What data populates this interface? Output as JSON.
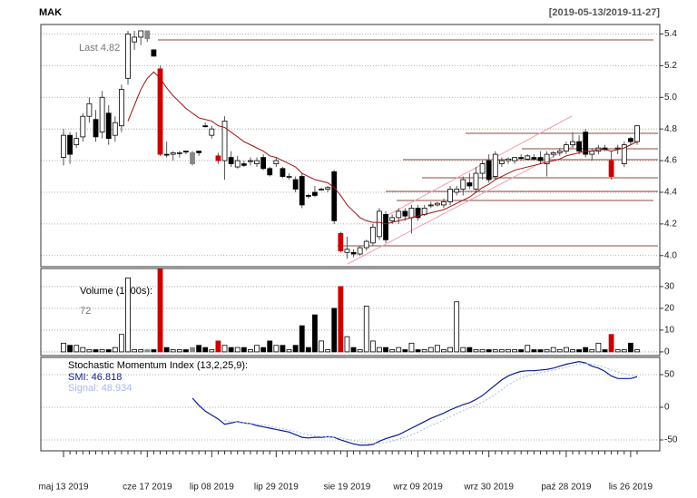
{
  "chart_data": [
    {
      "type": "candlestick",
      "title": "MAK",
      "subtitle": "[2019-05-13/2019-11-27]",
      "annotation": "Last 4.82",
      "categories": [
        "maj 13 2019",
        null,
        null,
        null,
        null,
        null,
        null,
        null,
        null,
        null,
        null,
        null,
        null,
        "cze 17 2019",
        null,
        null,
        null,
        null,
        null,
        null,
        null,
        null,
        null,
        "lip 08 2019",
        null,
        null,
        null,
        null,
        null,
        null,
        null,
        null,
        null,
        "lip 29 2019",
        null,
        null,
        null,
        null,
        null,
        null,
        null,
        null,
        null,
        null,
        "sie 19 2019",
        null,
        null,
        null,
        null,
        null,
        null,
        null,
        null,
        null,
        null,
        "wrz 09 2019",
        null,
        null,
        null,
        null,
        null,
        null,
        null,
        null,
        null,
        null,
        "wrz 30 2019",
        null,
        null,
        null,
        null,
        null,
        null,
        null,
        null,
        null,
        null,
        null,
        "paź 28 2019",
        null,
        null,
        null,
        null,
        null,
        null,
        null,
        null,
        null,
        "lis 26 2019",
        null
      ],
      "open": [
        4.62,
        4.76,
        4.7,
        4.75,
        4.88,
        4.86,
        4.78,
        4.9,
        4.76,
        4.82,
        5.12,
        5.35,
        5.38,
        5.42,
        5.3,
        5.18,
        4.64,
        4.64,
        4.65,
        4.66,
        4.58,
        4.65,
        4.82,
        4.8,
        4.63,
        4.6,
        4.62,
        4.56,
        4.58,
        4.6,
        4.58,
        4.62,
        4.55,
        4.58,
        4.55,
        4.5,
        4.48,
        4.5,
        4.38,
        4.4,
        4.42,
        4.42,
        4.53,
        4.14,
        4.04,
        4.02,
        4.01,
        4.05,
        4.08,
        4.12,
        4.26,
        4.22,
        4.24,
        4.28,
        4.24,
        4.3,
        4.26,
        4.32,
        4.32,
        4.32,
        4.34,
        4.4,
        4.42,
        4.46,
        4.42,
        4.52,
        4.6,
        4.5,
        4.58,
        4.6,
        4.6,
        4.62,
        4.61,
        4.62,
        4.62,
        4.58,
        4.64,
        4.65,
        4.66,
        4.7,
        4.72,
        4.78,
        4.64,
        4.66,
        4.68,
        4.6,
        4.68,
        4.58,
        4.72,
        4.72
      ],
      "high": [
        4.8,
        4.78,
        4.78,
        4.9,
        5.0,
        4.92,
        5.04,
        4.95,
        4.88,
        5.08,
        5.42,
        5.42,
        5.42,
        5.42,
        5.3,
        5.2,
        4.72,
        4.66,
        4.66,
        4.66,
        4.66,
        4.66,
        4.84,
        4.82,
        4.65,
        4.88,
        4.66,
        4.63,
        4.6,
        4.62,
        4.62,
        4.64,
        4.56,
        4.62,
        4.56,
        4.52,
        4.5,
        4.52,
        4.39,
        4.44,
        4.43,
        4.44,
        4.54,
        4.15,
        4.12,
        4.04,
        4.06,
        4.1,
        4.2,
        4.3,
        4.28,
        4.26,
        4.3,
        4.3,
        4.32,
        4.32,
        4.32,
        4.34,
        4.34,
        4.36,
        4.44,
        4.44,
        4.5,
        4.52,
        4.56,
        4.6,
        4.64,
        4.66,
        4.62,
        4.62,
        4.62,
        4.64,
        4.64,
        4.64,
        4.66,
        4.66,
        4.66,
        4.68,
        4.72,
        4.78,
        4.76,
        4.8,
        4.68,
        4.7,
        4.7,
        4.66,
        4.7,
        4.72,
        4.75,
        4.82
      ],
      "low": [
        4.57,
        4.58,
        4.68,
        4.72,
        4.84,
        4.72,
        4.74,
        4.7,
        4.72,
        4.78,
        5.08,
        5.3,
        5.33,
        5.35,
        5.26,
        4.63,
        4.62,
        4.6,
        4.62,
        4.64,
        4.57,
        4.63,
        4.81,
        4.74,
        4.58,
        4.48,
        4.56,
        4.55,
        4.56,
        4.57,
        4.56,
        4.54,
        4.5,
        4.56,
        4.49,
        4.48,
        4.4,
        4.3,
        4.36,
        4.37,
        4.41,
        4.4,
        4.2,
        4.02,
        3.98,
        3.99,
        4.0,
        4.03,
        4.06,
        4.1,
        4.08,
        4.2,
        4.2,
        4.22,
        4.14,
        4.22,
        4.25,
        4.3,
        4.31,
        4.3,
        4.32,
        4.38,
        4.38,
        4.42,
        4.4,
        4.48,
        4.46,
        4.48,
        4.56,
        4.58,
        4.58,
        4.6,
        4.6,
        4.6,
        4.58,
        4.5,
        4.62,
        4.63,
        4.64,
        4.68,
        4.64,
        4.62,
        4.6,
        4.64,
        4.66,
        4.48,
        4.64,
        4.56,
        4.7,
        4.7
      ],
      "close": [
        4.76,
        4.64,
        4.74,
        4.88,
        4.96,
        4.75,
        5.0,
        4.74,
        4.84,
        5.05,
        5.4,
        5.38,
        5.42,
        5.37,
        5.26,
        4.64,
        4.64,
        4.65,
        4.65,
        4.66,
        4.65,
        4.66,
        4.82,
        4.76,
        4.6,
        4.85,
        4.58,
        4.6,
        4.57,
        4.6,
        4.6,
        4.55,
        4.51,
        4.6,
        4.5,
        4.5,
        4.42,
        4.32,
        4.38,
        4.38,
        4.42,
        4.43,
        4.22,
        4.03,
        4.02,
        4.01,
        4.05,
        4.09,
        4.18,
        4.28,
        4.1,
        4.24,
        4.28,
        4.25,
        4.3,
        4.24,
        4.3,
        4.32,
        4.33,
        4.34,
        4.42,
        4.42,
        4.48,
        4.44,
        4.52,
        4.58,
        4.48,
        4.64,
        4.6,
        4.61,
        4.62,
        4.62,
        4.63,
        4.61,
        4.6,
        4.64,
        4.65,
        4.66,
        4.7,
        4.72,
        4.66,
        4.64,
        4.66,
        4.68,
        4.67,
        4.5,
        4.68,
        4.7,
        4.74,
        4.82
      ],
      "colors": [
        "#ffffff",
        "#000000",
        "#ffffff",
        "#ffffff",
        "#ffffff",
        "#000000",
        "#ffffff",
        "#000000",
        "#ffffff",
        "#ffffff",
        "#ffffff",
        "#ffffff",
        "#ffffff",
        "#888888",
        "#000000",
        "#cc0000",
        "#000000",
        "#ffffff",
        "#ffffff",
        "#000000",
        "#888888",
        "#000000",
        "#000000",
        "#ffffff",
        "#cc0000",
        "#ffffff",
        "#000000",
        "#ffffff",
        "#000000",
        "#ffffff",
        "#ffffff",
        "#000000",
        "#000000",
        "#ffffff",
        "#000000",
        "#ffffff",
        "#000000",
        "#000000",
        "#000000",
        "#000000",
        "#ffffff",
        "#ffffff",
        "#000000",
        "#cc0000",
        "#ffffff",
        "#000000",
        "#ffffff",
        "#ffffff",
        "#ffffff",
        "#ffffff",
        "#000000",
        "#ffffff",
        "#ffffff",
        "#000000",
        "#ffffff",
        "#000000",
        "#ffffff",
        "#ffffff",
        "#ffffff",
        "#ffffff",
        "#ffffff",
        "#ffffff",
        "#ffffff",
        "#000000",
        "#ffffff",
        "#ffffff",
        "#000000",
        "#ffffff",
        "#ffffff",
        "#ffffff",
        "#ffffff",
        "#000000",
        "#ffffff",
        "#000000",
        "#000000",
        "#ffffff",
        "#ffffff",
        "#ffffff",
        "#ffffff",
        "#ffffff",
        "#000000",
        "#000000",
        "#ffffff",
        "#ffffff",
        "#000000",
        "#cc0000",
        "#ffffff",
        "#ffffff",
        "#000000",
        "#ffffff"
      ],
      "ma_color": "#a01010",
      "ma_values": [
        null,
        null,
        null,
        null,
        null,
        null,
        null,
        null,
        null,
        null,
        4.85,
        4.95,
        5.05,
        5.12,
        5.16,
        5.12,
        5.06,
        5.01,
        4.97,
        4.93,
        4.9,
        4.87,
        4.86,
        4.85,
        4.82,
        4.81,
        4.78,
        4.75,
        4.72,
        4.7,
        4.68,
        4.66,
        4.63,
        4.62,
        4.6,
        4.58,
        4.56,
        4.52,
        4.5,
        4.48,
        4.47,
        4.46,
        4.43,
        4.38,
        4.32,
        4.28,
        4.24,
        4.22,
        4.21,
        4.21,
        4.2,
        4.21,
        4.22,
        4.23,
        4.24,
        4.25,
        4.26,
        4.27,
        4.28,
        4.29,
        4.31,
        4.33,
        4.35,
        4.37,
        4.4,
        4.43,
        4.45,
        4.48,
        4.5,
        4.52,
        4.54,
        4.55,
        4.56,
        4.57,
        4.58,
        4.59,
        4.6,
        4.61,
        4.63,
        4.64,
        4.65,
        4.66,
        4.66,
        4.67,
        4.67,
        4.66,
        4.67,
        4.68,
        4.7,
        4.72
      ],
      "ylim": [
        3.93,
        5.46
      ],
      "yticks": [
        {
          "value": 4.0,
          "label": "4.0"
        },
        4.2,
        4.4,
        4.6,
        4.8,
        {
          "value": 5.0,
          "label": "5.0"
        },
        5.2,
        5.4
      ],
      "grid": true
    },
    {
      "type": "bar",
      "title": "Volume (1000s):",
      "annotation": "72",
      "values": [
        4,
        3,
        3,
        2,
        1,
        1,
        1,
        1,
        2,
        8,
        34,
        1,
        1,
        1,
        1,
        38,
        2,
        1,
        1,
        1,
        2,
        3,
        2,
        1,
        5,
        3,
        2,
        2,
        2,
        1,
        3,
        2,
        5,
        3,
        3,
        1,
        3,
        12,
        2,
        17,
        5,
        1,
        20,
        30,
        7,
        2,
        1,
        21,
        5,
        2,
        2,
        1,
        2,
        1,
        4,
        1,
        1,
        2,
        3,
        1,
        2,
        23,
        2,
        2,
        1,
        1,
        1,
        1,
        1,
        1,
        1,
        1,
        3,
        1,
        1,
        1,
        2,
        1,
        2,
        1,
        1,
        2,
        1,
        4,
        1,
        8,
        1,
        1,
        4,
        1
      ],
      "ylim": [
        -1.7,
        38.3
      ],
      "yticks": [
        0,
        10,
        20,
        30
      ],
      "grid": true
    },
    {
      "type": "line",
      "title": "Stochastic Momentum Index (13,2,25,9):",
      "series": [
        {
          "name": "SMI: 46.818",
          "color": "#0a1e8c",
          "dash": false,
          "values": [
            null,
            null,
            null,
            null,
            null,
            null,
            null,
            null,
            null,
            null,
            null,
            null,
            null,
            null,
            null,
            null,
            null,
            null,
            null,
            null,
            14,
            3,
            -6,
            -12,
            -18,
            -26,
            -24,
            -22,
            -24,
            -25,
            -28,
            -30,
            -32,
            -34,
            -36,
            -38,
            -42,
            -46,
            -47,
            -46,
            -46,
            -45,
            -46,
            -50,
            -53,
            -56,
            -58,
            -58,
            -57,
            -52,
            -48,
            -45,
            -42,
            -37,
            -32,
            -27,
            -22,
            -17,
            -13,
            -9,
            -4,
            0,
            4,
            7,
            12,
            18,
            26,
            34,
            42,
            48,
            52,
            55,
            56,
            56,
            57,
            58,
            60,
            63,
            66,
            68,
            70,
            68,
            63,
            60,
            55,
            48,
            44,
            44,
            44,
            46.818
          ]
        },
        {
          "name": "Signal: 48.934",
          "color": "#a8b8ee",
          "dash": true,
          "values": [
            null,
            null,
            null,
            null,
            null,
            null,
            null,
            null,
            null,
            null,
            null,
            null,
            null,
            null,
            null,
            null,
            null,
            null,
            null,
            null,
            null,
            null,
            null,
            null,
            null,
            -20,
            -22,
            -23,
            -24,
            -25,
            -26,
            -27,
            -29,
            -31,
            -33,
            -35,
            -37,
            -40,
            -42,
            -44,
            -45,
            -45,
            -46,
            -47,
            -49,
            -51,
            -53,
            -55,
            -56,
            -55,
            -54,
            -52,
            -49,
            -46,
            -42,
            -38,
            -33,
            -28,
            -24,
            -19,
            -14,
            -10,
            -5,
            -1,
            3,
            8,
            13,
            20,
            27,
            34,
            40,
            45,
            48,
            51,
            53,
            55,
            57,
            59,
            61,
            64,
            66,
            67,
            66,
            64,
            61,
            57,
            54,
            51,
            49,
            48.934
          ]
        }
      ],
      "ylim": [
        -66.7,
        76.4
      ],
      "yticks": [
        -50,
        0,
        50
      ],
      "grid": true
    }
  ]
}
